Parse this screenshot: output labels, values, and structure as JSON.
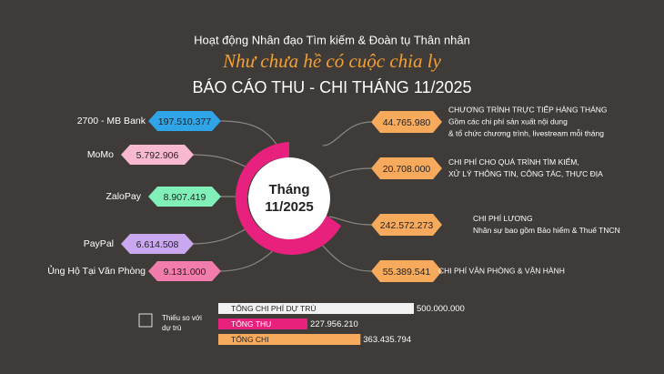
{
  "header": {
    "subtitle": "Hoạt động Nhân đạo Tìm kiếm & Đoàn tụ Thân nhân",
    "slogan": "Như chưa hề có cuộc chia ly",
    "title": "BÁO CÁO THU - CHI THÁNG 11/2025"
  },
  "center": {
    "line1": "Tháng",
    "line2": "11/2025"
  },
  "income": [
    {
      "source": "2700 - MB Bank",
      "amount": "197.510.377",
      "color": "#2fa4e7"
    },
    {
      "source": "MoMo",
      "amount": "5.792.906",
      "color": "#f9b8d2"
    },
    {
      "source": "ZaloPay",
      "amount": "8.907.419",
      "color": "#80efb8"
    },
    {
      "source": "PayPal",
      "amount": "6.614.508",
      "color": "#c9a8f0"
    },
    {
      "source": "Ủng Hộ  Tại Văn Phòng",
      "amount": "9.131.000",
      "color": "#f27cab"
    }
  ],
  "expenses": [
    {
      "amount": "44.765.980",
      "lines": [
        "CHƯƠNG TRÌNH TRỰC TIẾP HÀNG THÁNG",
        "Gồm các chi phí sản xuất nội dung",
        "& tổ chức chương trình, livestream mỗi tháng"
      ]
    },
    {
      "amount": "20.708.000",
      "lines": [
        "CHI PHÍ CHO QUÁ TRÌNH TÌM KIẾM,",
        "XỬ LÝ THÔNG TIN, CÔNG TÁC, THỰC ĐỊA"
      ]
    },
    {
      "amount": "242.572.273",
      "lines": [
        "CHI PHÍ LƯƠNG",
        "Nhân sự bao gồm Bảo hiểm & Thuế TNCN"
      ]
    },
    {
      "amount": "55.389.541",
      "lines": [
        "CHI PHÍ VĂN PHÒNG & VẬN HÀNH"
      ]
    }
  ],
  "expense_color": "#f7a95c",
  "legend": {
    "line1": "Thiếu so với",
    "line2": "dự trù"
  },
  "totals": [
    {
      "name": "TỔNG CHI PHÍ DỰ TRÙ",
      "amount": 500000000,
      "amount_label": "500.000.000",
      "color": "#f2f2f2"
    },
    {
      "name": "TỔNG THU",
      "amount": 227956210,
      "amount_label": "227.956.210",
      "color": "#e8207e"
    },
    {
      "name": "TỔNG CHI",
      "amount": 363435794,
      "amount_label": "363.435.794",
      "color": "#f7a95c"
    }
  ]
}
